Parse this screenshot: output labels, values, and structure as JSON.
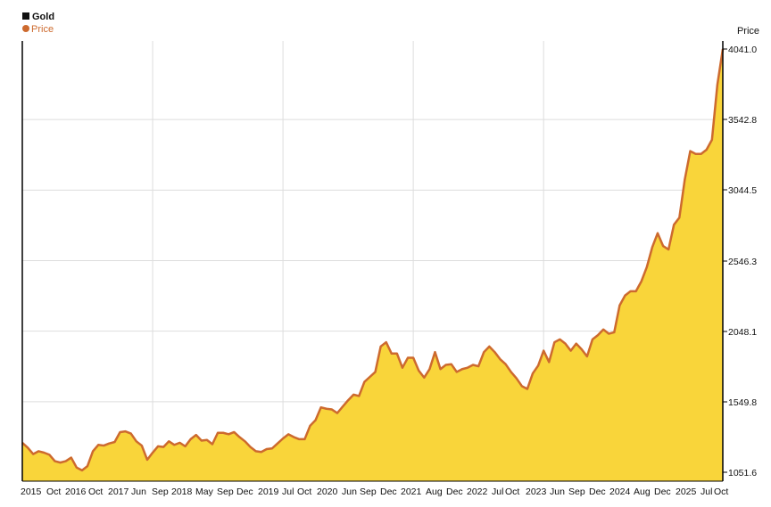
{
  "chart_data": {
    "type": "area",
    "legend": {
      "title": "Gold",
      "series_label": "Price",
      "placement": "top-left"
    },
    "ylabel": "Price",
    "y_ticks": [
      "4041.0",
      "3542.8",
      "3044.5",
      "2546.3",
      "2048.1",
      "1549.8",
      "1051.6"
    ],
    "ylim": [
      1051.6,
      4041.0
    ],
    "x_tick_labels": [
      "2015",
      "Oct",
      "2016",
      "Oct",
      "2017",
      "Jun",
      "Sep",
      "2018",
      "May",
      "Sep",
      "Dec",
      "2019",
      "Jul",
      "Oct",
      "2020",
      "Jun",
      "Sep",
      "Dec",
      "2021",
      "Aug",
      "Dec",
      "2022",
      "Jul",
      "Oct",
      "2023",
      "Jun",
      "Sep",
      "Dec",
      "2024",
      "Aug",
      "Dec",
      "2025",
      "Jul",
      "Oct"
    ],
    "xlim": [
      "2015-01",
      "2025-10"
    ],
    "x_gridlines": [
      "2017",
      "2019",
      "2021",
      "2023"
    ],
    "y_gridlines": [
      "3542.8",
      "3044.5",
      "2546.3",
      "2048.1",
      "1549.8"
    ],
    "grid": true,
    "colors": {
      "line": "#cd6a2e",
      "fill": "#f9d53a",
      "grid": "#dddddd",
      "legend_marker_title": "#111111",
      "legend_marker_series": "#cd6a2e",
      "legend_series_text": "#cd6a2e"
    },
    "series": [
      {
        "name": "Price",
        "x": [
          "2015-01",
          "2015-02",
          "2015-03",
          "2015-04",
          "2015-05",
          "2015-06",
          "2015-07",
          "2015-08",
          "2015-09",
          "2015-10",
          "2015-11",
          "2015-12",
          "2016-01",
          "2016-02",
          "2016-03",
          "2016-04",
          "2016-05",
          "2016-06",
          "2016-07",
          "2016-08",
          "2016-09",
          "2016-10",
          "2016-11",
          "2016-12",
          "2017-01",
          "2017-02",
          "2017-03",
          "2017-04",
          "2017-05",
          "2017-06",
          "2017-07",
          "2017-08",
          "2017-09",
          "2017-10",
          "2017-11",
          "2017-12",
          "2018-01",
          "2018-02",
          "2018-03",
          "2018-04",
          "2018-05",
          "2018-06",
          "2018-07",
          "2018-08",
          "2018-09",
          "2018-10",
          "2018-11",
          "2018-12",
          "2019-01",
          "2019-02",
          "2019-03",
          "2019-04",
          "2019-05",
          "2019-06",
          "2019-07",
          "2019-08",
          "2019-09",
          "2019-10",
          "2019-11",
          "2019-12",
          "2020-01",
          "2020-02",
          "2020-03",
          "2020-04",
          "2020-05",
          "2020-06",
          "2020-07",
          "2020-08",
          "2020-09",
          "2020-10",
          "2020-11",
          "2020-12",
          "2021-01",
          "2021-02",
          "2021-03",
          "2021-04",
          "2021-05",
          "2021-06",
          "2021-07",
          "2021-08",
          "2021-09",
          "2021-10",
          "2021-11",
          "2021-12",
          "2022-01",
          "2022-02",
          "2022-03",
          "2022-04",
          "2022-05",
          "2022-06",
          "2022-07",
          "2022-08",
          "2022-09",
          "2022-10",
          "2022-11",
          "2022-12",
          "2023-01",
          "2023-02",
          "2023-03",
          "2023-04",
          "2023-05",
          "2023-06",
          "2023-07",
          "2023-08",
          "2023-09",
          "2023-10",
          "2023-11",
          "2023-12",
          "2024-01",
          "2024-02",
          "2024-03",
          "2024-04",
          "2024-05",
          "2024-06",
          "2024-07",
          "2024-08",
          "2024-09",
          "2024-10",
          "2024-11",
          "2024-12",
          "2025-01",
          "2025-02",
          "2025-03",
          "2025-04",
          "2025-05",
          "2025-06",
          "2025-07",
          "2025-08",
          "2025-09",
          "2025-10"
        ],
        "values": [
          1260,
          1225,
          1180,
          1200,
          1190,
          1175,
          1130,
          1120,
          1130,
          1155,
          1085,
          1065,
          1095,
          1200,
          1245,
          1240,
          1255,
          1265,
          1335,
          1340,
          1325,
          1270,
          1240,
          1140,
          1190,
          1235,
          1230,
          1270,
          1245,
          1260,
          1235,
          1285,
          1315,
          1275,
          1280,
          1250,
          1330,
          1330,
          1320,
          1335,
          1300,
          1270,
          1230,
          1200,
          1195,
          1215,
          1220,
          1255,
          1290,
          1320,
          1300,
          1285,
          1285,
          1380,
          1420,
          1510,
          1500,
          1495,
          1470,
          1515,
          1560,
          1600,
          1590,
          1690,
          1725,
          1760,
          1940,
          1970,
          1890,
          1890,
          1790,
          1860,
          1860,
          1770,
          1720,
          1780,
          1900,
          1780,
          1810,
          1815,
          1760,
          1780,
          1790,
          1810,
          1800,
          1900,
          1940,
          1900,
          1850,
          1815,
          1760,
          1715,
          1660,
          1640,
          1750,
          1805,
          1910,
          1830,
          1970,
          1990,
          1960,
          1910,
          1960,
          1920,
          1870,
          1990,
          2020,
          2060,
          2030,
          2040,
          2230,
          2300,
          2330,
          2330,
          2400,
          2500,
          2640,
          2740,
          2650,
          2625,
          2800,
          2850,
          3120,
          3320,
          3300,
          3300,
          3330,
          3400,
          3790,
          4041
        ]
      }
    ]
  }
}
